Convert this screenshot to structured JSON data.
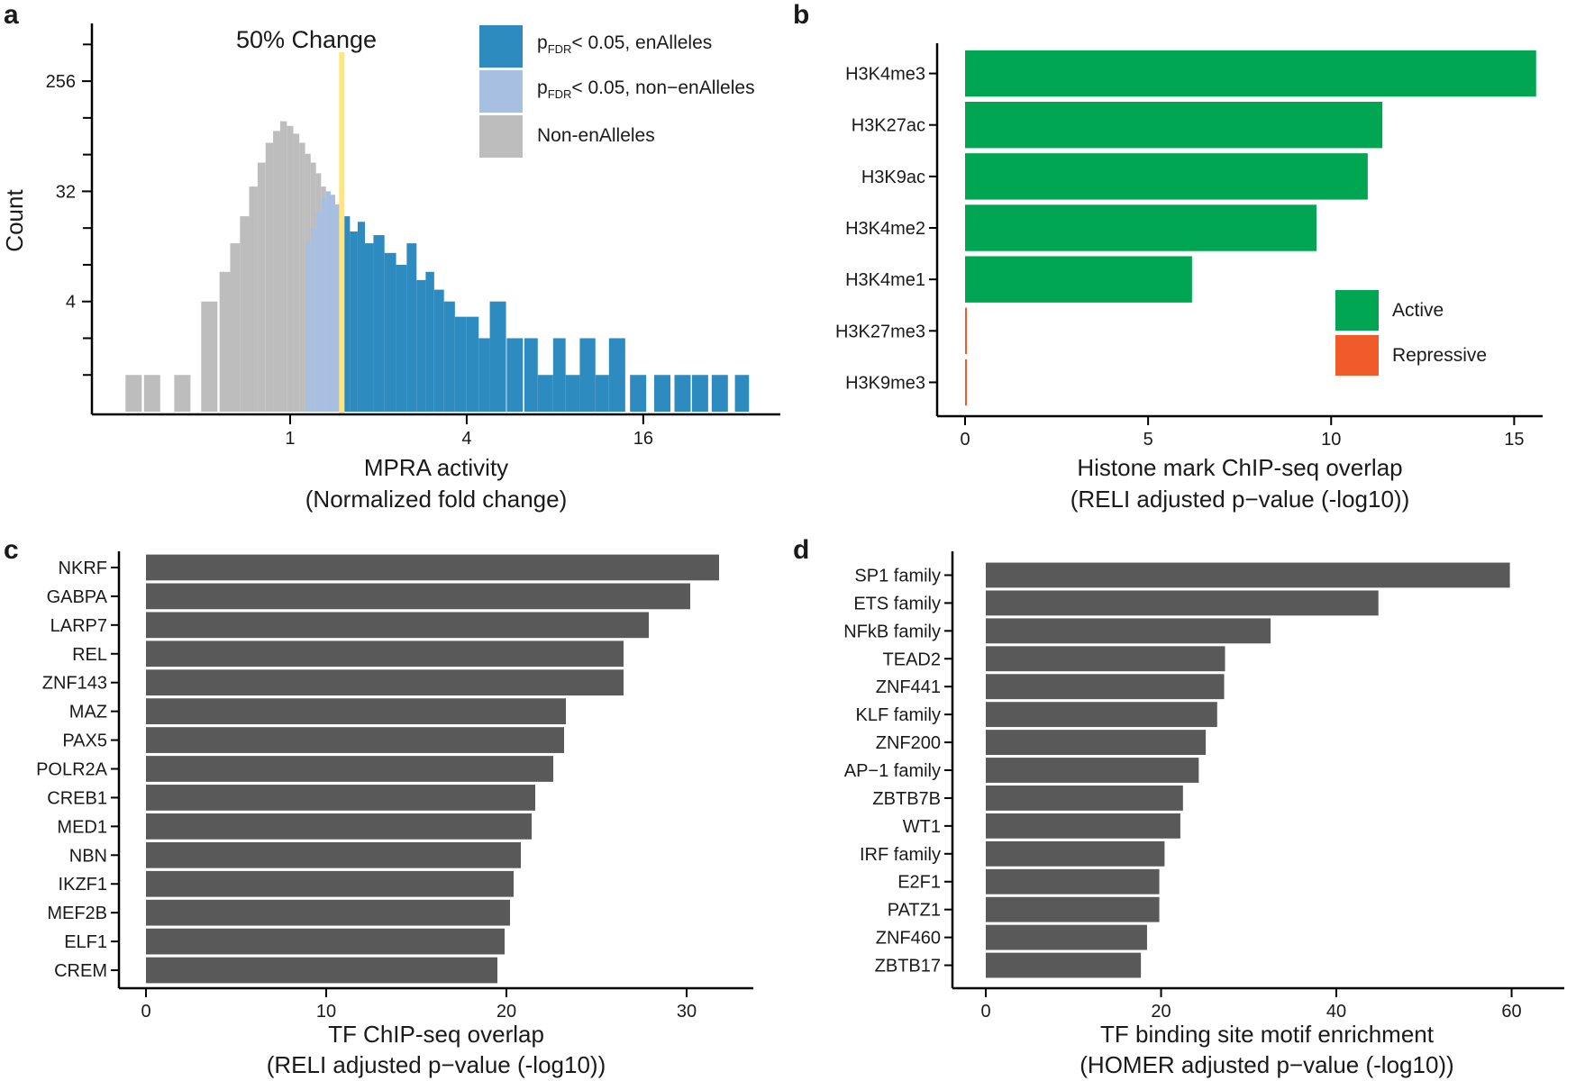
{
  "panel_labels": [
    "a",
    "b",
    "c",
    "d"
  ],
  "colors": {
    "enalleles": "#2e8bc0",
    "non_enalleles_sig": "#a7bfe0",
    "non_enalleles": "#bdbdbd",
    "threshold": "#ffe680",
    "active": "#00a651",
    "repressive": "#f15a29",
    "bar": "#595959"
  },
  "chart_data": [
    {
      "panel": "a",
      "type": "histogram",
      "title": "50% Change",
      "xlabel": "MPRA activity",
      "xlabel2": "(Normalized fold change)",
      "ylabel": "Count",
      "x_scale": "log2",
      "y_scale": "log2",
      "xlim": [
        0.22,
        45
      ],
      "ylim": [
        0.5,
        600
      ],
      "xticks": [
        {
          "v": 1,
          "label": "1"
        },
        {
          "v": 4,
          "label": "4"
        },
        {
          "v": 16,
          "label": "16"
        }
      ],
      "yticks": [
        {
          "v": 4,
          "label": "4"
        },
        {
          "v": 32,
          "label": "32"
        },
        {
          "v": 256,
          "label": "256"
        }
      ],
      "threshold": 1.5,
      "legend": [
        {
          "sub": "FDR",
          "text": "< 0.05, enAlleles",
          "color_key": "enalleles"
        },
        {
          "sub": "FDR",
          "text": "< 0.05, non−enAlleles",
          "color_key": "non_enalleles_sig"
        },
        {
          "sub": "",
          "text": "Non-enAlleles",
          "color_key": "non_enalleles"
        }
      ],
      "legend_prefix": "p",
      "series": [
        {
          "name": "Non-enAlleles",
          "color_key": "non_enalleles",
          "x": [
            0.28,
            0.36,
            0.45,
            0.55,
            0.6,
            0.65,
            0.7,
            0.75,
            0.8,
            0.85,
            0.9,
            0.95,
            1.0,
            1.05,
            1.1,
            1.15,
            1.2,
            1.25,
            1.3,
            1.35,
            1.4,
            1.45,
            1.5
          ],
          "counts": [
            1,
            1,
            1,
            4,
            7,
            12,
            20,
            35,
            55,
            80,
            100,
            120,
            110,
            95,
            80,
            65,
            55,
            45,
            35,
            28,
            22,
            16,
            12
          ]
        },
        {
          "name": "pFDR< 0.05, non-enAlleles",
          "color_key": "non_enalleles_sig",
          "x": [
            1.15,
            1.2,
            1.25,
            1.3,
            1.35,
            1.4,
            1.45,
            1.5
          ],
          "counts": [
            12,
            16,
            22,
            28,
            32,
            30,
            25,
            20
          ]
        },
        {
          "name": "pFDR< 0.05, enAlleles",
          "color_key": "enalleles",
          "x": [
            1.55,
            1.65,
            1.75,
            1.85,
            2.0,
            2.2,
            2.4,
            2.6,
            2.8,
            3.0,
            3.2,
            3.5,
            3.8,
            4.2,
            4.6,
            5.0,
            6.0,
            6.6,
            7.4,
            8.4,
            9.0,
            10.5,
            11.5,
            13.0,
            16.0,
            19.0,
            22.0,
            25.0,
            30.0,
            36.0
          ],
          "counts": [
            20,
            15,
            18,
            12,
            14,
            10,
            8,
            12,
            6,
            7,
            5,
            4,
            3,
            3,
            2,
            4,
            2,
            2,
            1,
            2,
            1,
            2,
            1,
            2,
            1,
            1,
            1,
            1,
            1,
            1
          ]
        }
      ]
    },
    {
      "panel": "b",
      "type": "bar",
      "orientation": "horizontal",
      "xlabel": "Histone mark ChIP-seq overlap",
      "xlabel2": "(RELI adjusted p−value (-log10))",
      "xlim": [
        0,
        16
      ],
      "xticks": [
        0,
        5,
        10,
        15
      ],
      "categories": [
        "H3K4me3",
        "H3K27ac",
        "H3K9ac",
        "H3K4me2",
        "H3K4me1",
        "H3K27me3",
        "H3K9me3"
      ],
      "values": [
        15.6,
        11.4,
        11.0,
        9.6,
        6.2,
        0.05,
        0.05
      ],
      "groups": [
        "Active",
        "Active",
        "Active",
        "Active",
        "Active",
        "Repressive",
        "Repressive"
      ],
      "legend": [
        {
          "label": "Active",
          "color_key": "active"
        },
        {
          "label": "Repressive",
          "color_key": "repressive"
        }
      ]
    },
    {
      "panel": "c",
      "type": "bar",
      "orientation": "horizontal",
      "xlabel": "TF ChIP-seq overlap",
      "xlabel2": "(RELI adjusted p−value (-log10))",
      "xlim": [
        0,
        33
      ],
      "xticks": [
        0,
        10,
        20,
        30
      ],
      "categories": [
        "NKRF",
        "GABPA",
        "LARP7",
        "REL",
        "ZNF143",
        "MAZ",
        "PAX5",
        "POLR2A",
        "CREB1",
        "MED1",
        "NBN",
        "IKZF1",
        "MEF2B",
        "ELF1",
        "CREM"
      ],
      "values": [
        31.8,
        30.2,
        27.9,
        26.5,
        26.5,
        23.3,
        23.2,
        22.6,
        21.6,
        21.4,
        20.8,
        20.4,
        20.2,
        19.9,
        19.5
      ]
    },
    {
      "panel": "d",
      "type": "bar",
      "orientation": "horizontal",
      "xlabel": "TF binding site motif enrichment",
      "xlabel2": "(HOMER adjusted  p−value (-log10))",
      "xlim": [
        0,
        62
      ],
      "xticks": [
        0,
        20,
        40,
        60
      ],
      "categories": [
        "SP1 family",
        "ETS family",
        "NFkB family",
        "TEAD2",
        "ZNF441",
        "KLF family",
        "ZNF200",
        "AP−1 family",
        "ZBTB7B",
        "WT1",
        "IRF family",
        "E2F1",
        "PATZ1",
        "ZNF460",
        "ZBTB17"
      ],
      "values": [
        59.8,
        44.8,
        32.5,
        27.3,
        27.2,
        26.4,
        25.1,
        24.3,
        22.5,
        22.2,
        20.4,
        19.8,
        19.8,
        18.4,
        17.7
      ]
    }
  ]
}
